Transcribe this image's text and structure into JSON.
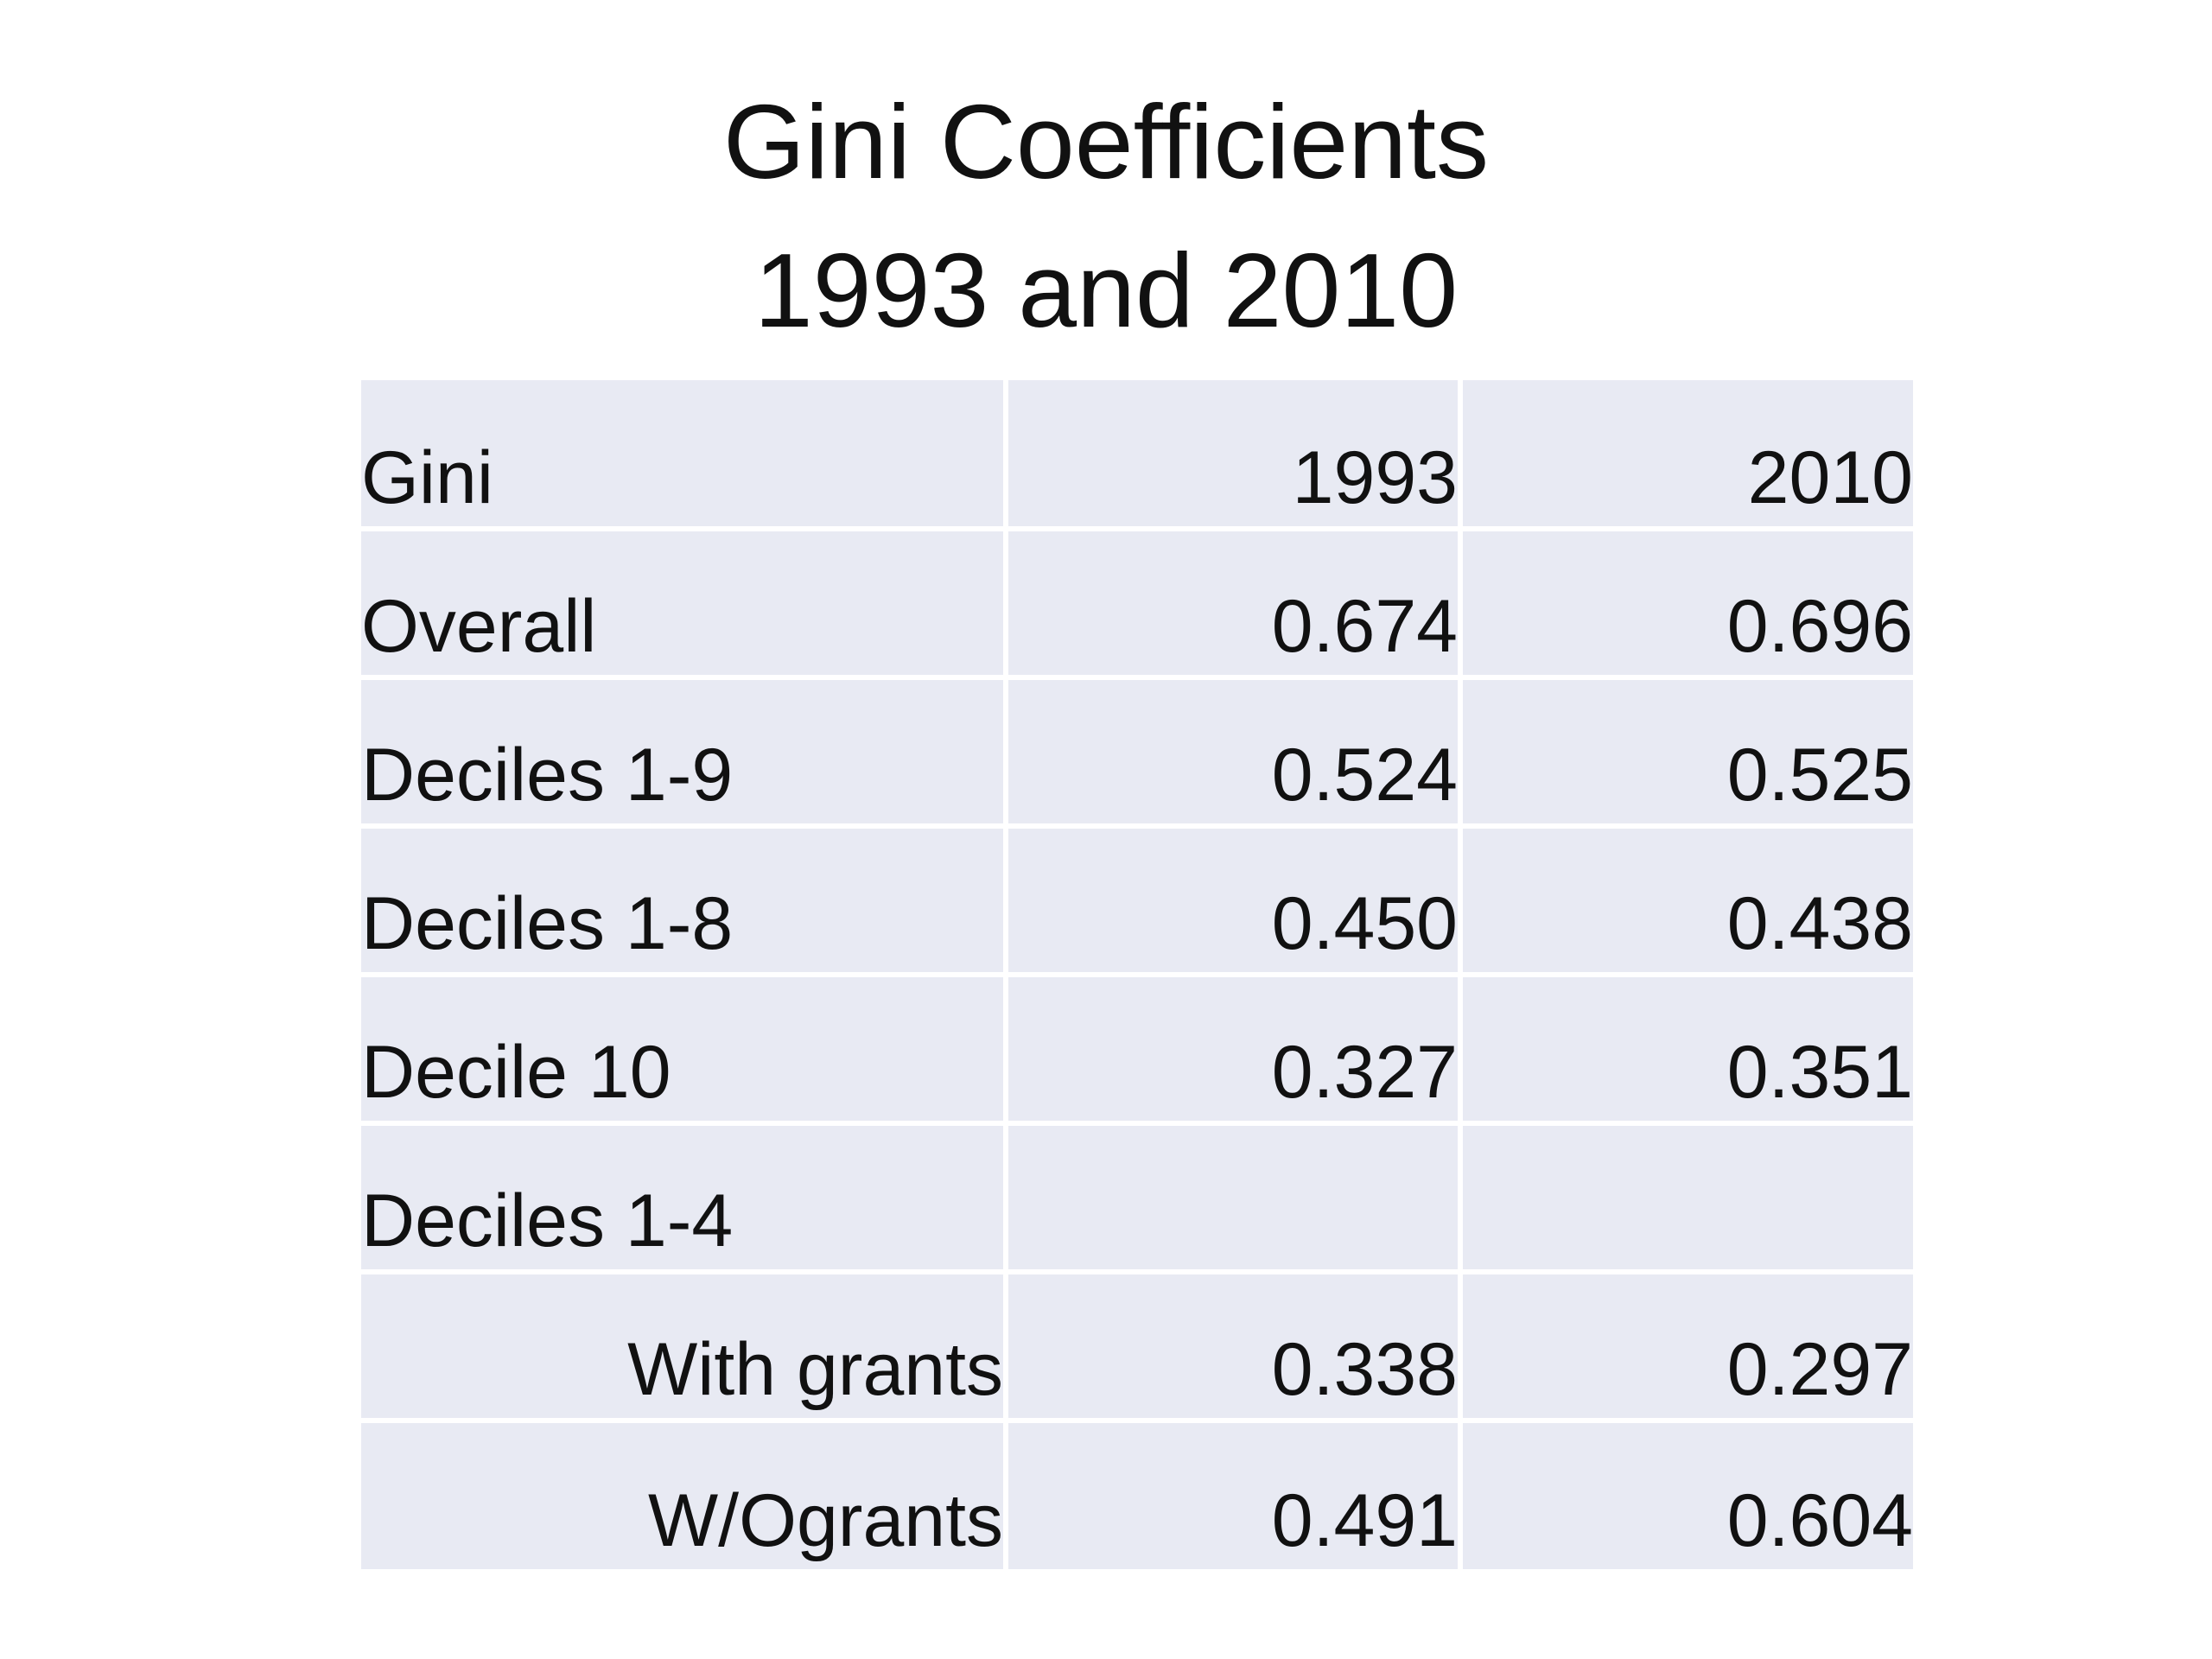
{
  "title": {
    "line1": "Gini Coefficients",
    "line2": "1993 and 2010"
  },
  "chart_data": {
    "type": "table",
    "columns": [
      "Gini",
      "1993",
      "2010"
    ],
    "rows": [
      {
        "label": "Overall",
        "v1993": "0.674",
        "v2010": "0.696"
      },
      {
        "label": "Deciles 1-9",
        "v1993": "0.524",
        "v2010": "0.525"
      },
      {
        "label": "Deciles 1-8",
        "v1993": "0.450",
        "v2010": "0.438"
      },
      {
        "label": "Decile 10",
        "v1993": "0.327",
        "v2010": "0.351"
      },
      {
        "label": "Deciles 1-4",
        "v1993": "",
        "v2010": ""
      },
      {
        "label": "With grants",
        "v1993": "0.338",
        "v2010": "0.297"
      },
      {
        "label": "W/Ogrants",
        "v1993": "0.491",
        "v2010": "0.604"
      }
    ]
  },
  "colors": {
    "cell_background": "#e8eaf3",
    "text": "#111111",
    "page_background": "#ffffff"
  }
}
